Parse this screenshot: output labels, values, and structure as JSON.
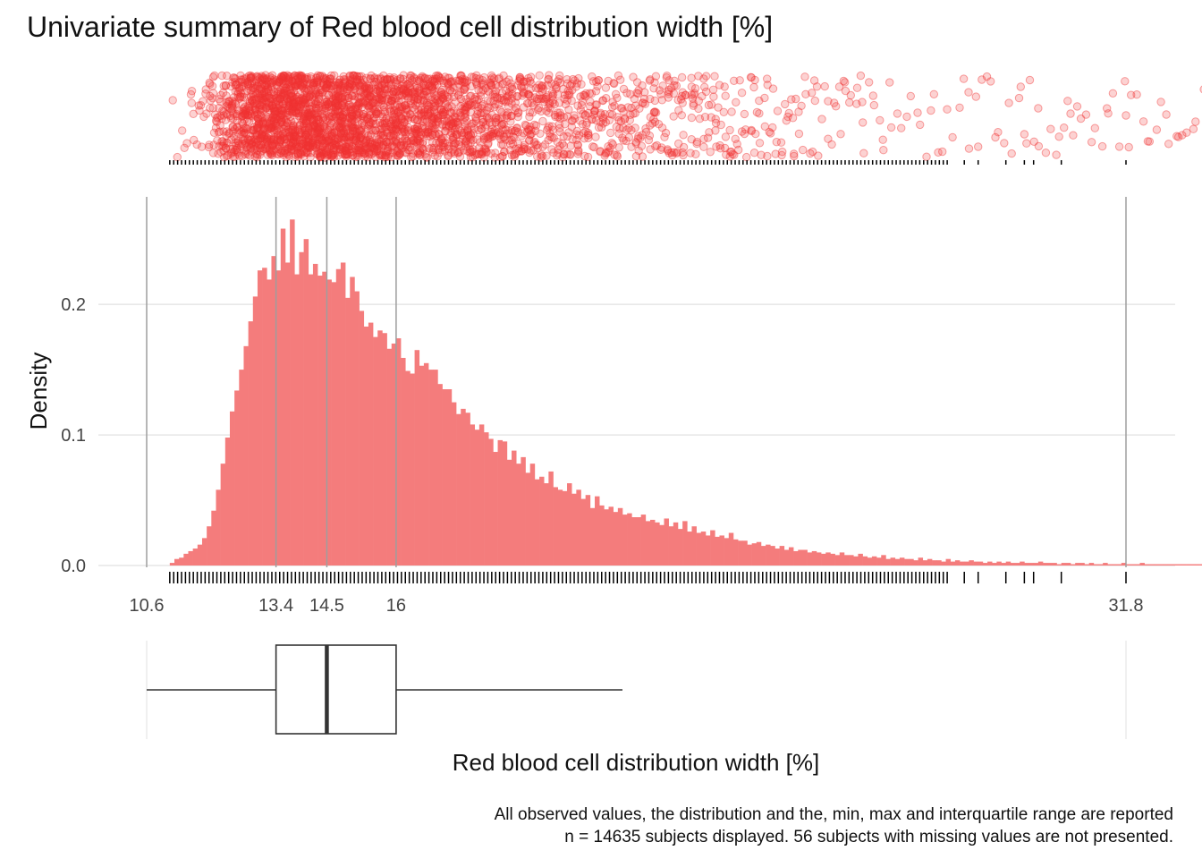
{
  "chart_data": {
    "type": "histogram",
    "title": "Univariate summary of Red blood cell distribution width [%]",
    "xlabel": "Red blood cell distribution width [%]",
    "ylabel": "Density",
    "xlim": [
      10.6,
      31.8
    ],
    "ylim": [
      0,
      0.27
    ],
    "x_ticks": [
      10.6,
      13.4,
      14.5,
      16,
      31.8
    ],
    "y_ticks": [
      0.0,
      0.1,
      0.2
    ],
    "y_tick_labels": [
      "0.0",
      "0.1",
      "0.2"
    ],
    "summary": {
      "min": 10.6,
      "q1": 13.4,
      "median": 14.5,
      "q3": 16,
      "max": 31.8,
      "whisker_upper": 20.9
    },
    "bin_width": 0.1,
    "bin_start": 11.1,
    "histogram_density": [
      0.002,
      0.005,
      0.006,
      0.009,
      0.011,
      0.013,
      0.016,
      0.021,
      0.03,
      0.042,
      0.058,
      0.078,
      0.098,
      0.118,
      0.134,
      0.15,
      0.168,
      0.187,
      0.206,
      0.226,
      0.228,
      0.219,
      0.237,
      0.226,
      0.258,
      0.232,
      0.265,
      0.223,
      0.24,
      0.25,
      0.223,
      0.231,
      0.222,
      0.225,
      0.219,
      0.217,
      0.227,
      0.232,
      0.205,
      0.221,
      0.21,
      0.195,
      0.183,
      0.186,
      0.175,
      0.18,
      0.178,
      0.166,
      0.17,
      0.174,
      0.159,
      0.149,
      0.147,
      0.165,
      0.153,
      0.155,
      0.15,
      0.15,
      0.139,
      0.135,
      0.135,
      0.125,
      0.116,
      0.12,
      0.117,
      0.108,
      0.104,
      0.108,
      0.102,
      0.097,
      0.087,
      0.096,
      0.095,
      0.081,
      0.088,
      0.078,
      0.083,
      0.071,
      0.078,
      0.066,
      0.068,
      0.063,
      0.072,
      0.06,
      0.058,
      0.057,
      0.063,
      0.055,
      0.058,
      0.051,
      0.054,
      0.044,
      0.053,
      0.046,
      0.043,
      0.045,
      0.041,
      0.044,
      0.039,
      0.04,
      0.037,
      0.037,
      0.039,
      0.034,
      0.035,
      0.033,
      0.031,
      0.036,
      0.03,
      0.033,
      0.028,
      0.034,
      0.026,
      0.03,
      0.025,
      0.026,
      0.023,
      0.027,
      0.022,
      0.023,
      0.021,
      0.025,
      0.02,
      0.019,
      0.019,
      0.016,
      0.017,
      0.018,
      0.015,
      0.016,
      0.015,
      0.013,
      0.015,
      0.012,
      0.014,
      0.011,
      0.012,
      0.012,
      0.01,
      0.011,
      0.01,
      0.009,
      0.01,
      0.009,
      0.008,
      0.01,
      0.008,
      0.008,
      0.007,
      0.009,
      0.007,
      0.006,
      0.007,
      0.006,
      0.008,
      0.005,
      0.006,
      0.005,
      0.006,
      0.005,
      0.005,
      0.004,
      0.006,
      0.004,
      0.005,
      0.004,
      0.004,
      0.003,
      0.005,
      0.003,
      0.004,
      0.003,
      0.003,
      0.004,
      0.003,
      0.003,
      0.002,
      0.003,
      0.002,
      0.003,
      0.002,
      0.003,
      0.002,
      0.002,
      0.003,
      0.002,
      0.002,
      0.002,
      0.003,
      0.002,
      0.002,
      0.002,
      0.001,
      0.002,
      0.002,
      0.001,
      0.002,
      0.002,
      0.001,
      0.002,
      0.001,
      0.001,
      0.002,
      0.001,
      0.001,
      0.001,
      0.002,
      0.001,
      0.001,
      0.001,
      0.002,
      0.001,
      0.001,
      0.001,
      0.001,
      0.001,
      0.001,
      0.001,
      0.001,
      0.001,
      0.001,
      0.001,
      0.001,
      0.001,
      0.001,
      0.001,
      0.001,
      0.001,
      0.001,
      0.001,
      0.001,
      0.001,
      0.001,
      0.001,
      0.001,
      0.001,
      0.001,
      0.001,
      0.001,
      0.001,
      0.001,
      0.001,
      0.001,
      0.001,
      0.001,
      0.001,
      0.001,
      0.001,
      0.001,
      0.001
    ],
    "rug_dense_range": [
      11.1,
      28.0
    ],
    "rug_sparse_values": [
      28.3,
      28.6,
      29.2,
      29.6,
      29.8,
      30.4,
      31.8
    ],
    "jitter_outliers": [
      28.6,
      29.6,
      29.9,
      30.6,
      31.8
    ],
    "colors": {
      "histogram_fill": "#F47C7C",
      "jitter_point": "#F03232",
      "reference_line": "#9E9E9E",
      "gridline": "#E6E6E6",
      "box_stroke": "#333333"
    }
  },
  "caption": {
    "line1": "All observed values, the distribution and the, min, max and interquartile range are reported",
    "line2": "n = 14635 subjects displayed. 56 subjects with missing values are not presented."
  }
}
